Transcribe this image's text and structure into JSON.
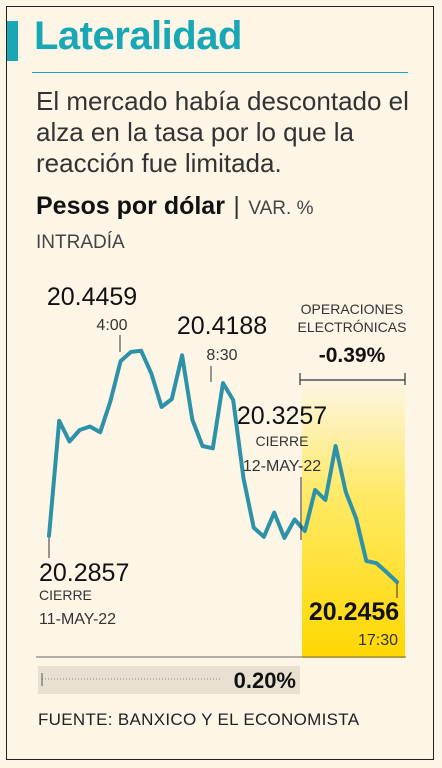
{
  "title": "Lateralidad",
  "subtitle": "El mercado había descontado el alza en la tasa por lo que la reacción fue limitada.",
  "metric_title": "Pesos por dólar",
  "metric_separator": "|",
  "metric_unit": "VAR. %",
  "period": "INTRADÍA",
  "source": "FUENTE: BANXICO Y EL ECONOMISTA",
  "colors": {
    "accent": "#17a7b5",
    "line": "#2d92a8",
    "highlight": "#ffd700",
    "background": "#fdf6e7"
  },
  "chart_data": {
    "type": "line",
    "series": [
      {
        "values": [
          20.2857,
          20.386,
          20.368,
          20.378,
          20.381,
          20.376,
          20.403,
          20.438,
          20.4459,
          20.447,
          20.427,
          20.398,
          20.405,
          20.443,
          20.387,
          20.364,
          20.362,
          20.4188,
          20.404,
          20.336,
          20.293,
          20.285,
          20.306,
          20.284,
          20.3,
          20.29,
          20.3257,
          20.317,
          20.364,
          20.324,
          20.301,
          20.264,
          20.262,
          20.254,
          20.2456
        ]
      }
    ],
    "annotations": [
      {
        "value": "20.4459",
        "time": "4:00"
      },
      {
        "value": "20.4188",
        "time": "8:30"
      },
      {
        "value": "20.3257",
        "label": "CIERRE",
        "date": "12-MAY-22"
      },
      {
        "value": "20.2857",
        "label": "CIERRE",
        "date": "11-MAY-22"
      },
      {
        "value": "20.2456",
        "time": "17:30"
      }
    ],
    "electronic_ops": {
      "label_line1": "OPERACIONES",
      "label_line2": "ELECTRÓNICAS",
      "change": "-0.39%"
    },
    "day_change": "0.20%"
  }
}
